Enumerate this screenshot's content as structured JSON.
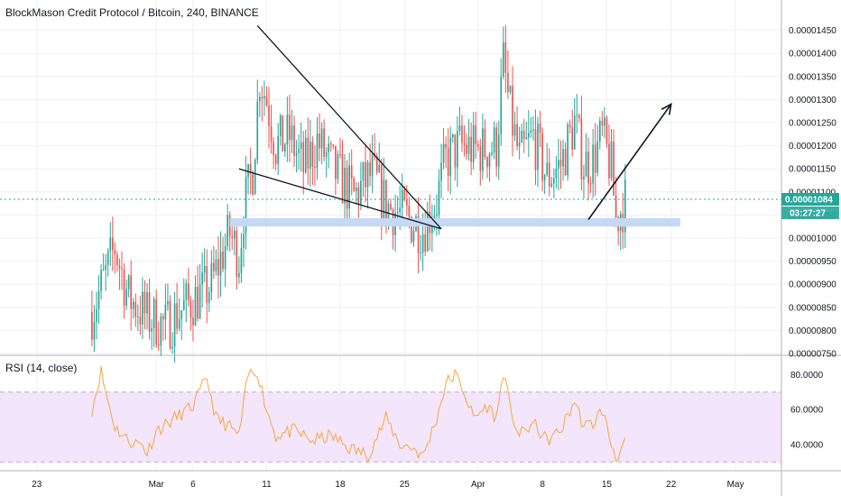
{
  "chart_data": {
    "type": "candlestick",
    "title": "BlockMason Credit Protocol / Bitcoin, 240, BINANCE",
    "price": {
      "ylim": [
        7.5e-06,
        1.5e-05
      ],
      "ticks": [
        "0.00001450",
        "0.00001400",
        "0.00001350",
        "0.00001300",
        "0.00001250",
        "0.00001200",
        "0.00001150",
        "0.00001100",
        "0.00001050",
        "0.00001000",
        "0.00000950",
        "0.00000900",
        "0.00000850",
        "0.00000800",
        "0.00000750"
      ],
      "tick_values": [
        1.45e-05,
        1.4e-05,
        1.35e-05,
        1.3e-05,
        1.25e-05,
        1.2e-05,
        1.15e-05,
        1.1e-05,
        1.05e-05,
        1e-05,
        9.5e-06,
        9e-06,
        8.5e-06,
        8e-06,
        7.5e-06
      ],
      "current_price": "0.00001084",
      "current_value": 1.084e-05,
      "countdown": "03:27:27",
      "up_color": "#26a69a",
      "down_color": "#ef5350",
      "key_points": [
        {
          "x": 0,
          "y": 8.4e-06
        },
        {
          "x": 3,
          "y": 9.2e-06
        },
        {
          "x": 5,
          "y": 9.8e-06
        },
        {
          "x": 8,
          "y": 8.7e-06
        },
        {
          "x": 12,
          "y": 8.3e-06
        },
        {
          "x": 16,
          "y": 8.1e-06
        },
        {
          "x": 20,
          "y": 8.5e-06
        },
        {
          "x": 24,
          "y": 8.8e-06
        },
        {
          "x": 26,
          "y": 9e-06
        },
        {
          "x": 30,
          "y": 1.01e-05
        },
        {
          "x": 32,
          "y": 9.6e-06
        },
        {
          "x": 33,
          "y": 1.06e-05
        },
        {
          "x": 35,
          "y": 1.15e-05
        },
        {
          "x": 36.5,
          "y": 1.35e-05
        },
        {
          "x": 38,
          "y": 1.3e-05
        },
        {
          "x": 40,
          "y": 1.2e-05
        },
        {
          "x": 43,
          "y": 1.22e-05
        },
        {
          "x": 46,
          "y": 1.15e-05
        },
        {
          "x": 49,
          "y": 1.21e-05
        },
        {
          "x": 53,
          "y": 1.14e-05
        },
        {
          "x": 57,
          "y": 1.09e-05
        },
        {
          "x": 61,
          "y": 1.14e-05
        },
        {
          "x": 64,
          "y": 1.07e-05
        },
        {
          "x": 69,
          "y": 1.04e-05
        },
        {
          "x": 72,
          "y": 1.02e-05
        },
        {
          "x": 75,
          "y": 1.08e-05
        },
        {
          "x": 77,
          "y": 1.17e-05
        },
        {
          "x": 80,
          "y": 1.2e-05
        },
        {
          "x": 84,
          "y": 1.19e-05
        },
        {
          "x": 88,
          "y": 1.2e-05
        },
        {
          "x": 89.5,
          "y": 1.38e-05
        },
        {
          "x": 91,
          "y": 1.27e-05
        },
        {
          "x": 93,
          "y": 1.17e-05
        },
        {
          "x": 96,
          "y": 1.22e-05
        },
        {
          "x": 99,
          "y": 1.13e-05
        },
        {
          "x": 102,
          "y": 1.16e-05
        },
        {
          "x": 105,
          "y": 1.25e-05
        },
        {
          "x": 107,
          "y": 1.16e-05
        },
        {
          "x": 109,
          "y": 1.17e-05
        },
        {
          "x": 111,
          "y": 1.22e-05
        },
        {
          "x": 113,
          "y": 1.15e-05
        },
        {
          "x": 114,
          "y": 1.04e-05
        },
        {
          "x": 116,
          "y": 1.08e-05
        }
      ]
    },
    "rsi": {
      "label": "RSI (14, close)",
      "ylim": [
        25,
        90
      ],
      "ticks": [
        "80.0000",
        "60.0000",
        "40.0000"
      ],
      "tick_values": [
        80,
        60,
        40
      ],
      "upper_band": 70,
      "lower_band": 30,
      "line_color": "#f5a742",
      "band_fill": "#f3e5fb",
      "key_points": [
        {
          "x": 0,
          "y": 60
        },
        {
          "x": 2,
          "y": 82
        },
        {
          "x": 3,
          "y": 70
        },
        {
          "x": 5,
          "y": 50
        },
        {
          "x": 8,
          "y": 42
        },
        {
          "x": 11,
          "y": 40
        },
        {
          "x": 12,
          "y": 35
        },
        {
          "x": 14,
          "y": 48
        },
        {
          "x": 18,
          "y": 55
        },
        {
          "x": 22,
          "y": 62
        },
        {
          "x": 25,
          "y": 78
        },
        {
          "x": 27,
          "y": 55
        },
        {
          "x": 30,
          "y": 50
        },
        {
          "x": 32,
          "y": 45
        },
        {
          "x": 34,
          "y": 80
        },
        {
          "x": 36,
          "y": 82
        },
        {
          "x": 38,
          "y": 60
        },
        {
          "x": 40,
          "y": 45
        },
        {
          "x": 44,
          "y": 48
        },
        {
          "x": 48,
          "y": 42
        },
        {
          "x": 52,
          "y": 45
        },
        {
          "x": 56,
          "y": 38
        },
        {
          "x": 60,
          "y": 34
        },
        {
          "x": 64,
          "y": 55
        },
        {
          "x": 67,
          "y": 40
        },
        {
          "x": 70,
          "y": 38
        },
        {
          "x": 72,
          "y": 33
        },
        {
          "x": 75,
          "y": 55
        },
        {
          "x": 77,
          "y": 75
        },
        {
          "x": 79,
          "y": 80
        },
        {
          "x": 81,
          "y": 70
        },
        {
          "x": 83,
          "y": 55
        },
        {
          "x": 86,
          "y": 62
        },
        {
          "x": 88,
          "y": 55
        },
        {
          "x": 89.5,
          "y": 82
        },
        {
          "x": 91,
          "y": 60
        },
        {
          "x": 93,
          "y": 45
        },
        {
          "x": 96,
          "y": 52
        },
        {
          "x": 99,
          "y": 42
        },
        {
          "x": 102,
          "y": 48
        },
        {
          "x": 105,
          "y": 65
        },
        {
          "x": 107,
          "y": 50
        },
        {
          "x": 109,
          "y": 52
        },
        {
          "x": 111,
          "y": 60
        },
        {
          "x": 113,
          "y": 40
        },
        {
          "x": 114,
          "y": 33
        },
        {
          "x": 116,
          "y": 40
        }
      ]
    },
    "x_axis": {
      "labels": [
        "23",
        "Mar",
        "6",
        "11",
        "18",
        "25",
        "Apr",
        "8",
        "15",
        "22",
        "May"
      ],
      "bar_index": [
        -12,
        14,
        22,
        38,
        54,
        68,
        84,
        98,
        112,
        126,
        140
      ],
      "range": [
        -20,
        150
      ],
      "last_bar": 116
    },
    "annotations": {
      "wedge_upper": [
        {
          "x": 36,
          "y": 1.46e-05
        },
        {
          "x": 76,
          "y": 1.02e-05
        }
      ],
      "wedge_lower": [
        {
          "x": 32,
          "y": 1.15e-05
        },
        {
          "x": 76,
          "y": 1.02e-05
        }
      ],
      "support_zone": {
        "x0": 30,
        "x1": 128,
        "y0": 1.025e-05,
        "y1": 1.043e-05
      },
      "arrow": {
        "from": {
          "x": 108,
          "y": 1.04e-05
        },
        "to": {
          "x": 126,
          "y": 1.29e-05
        }
      }
    }
  }
}
